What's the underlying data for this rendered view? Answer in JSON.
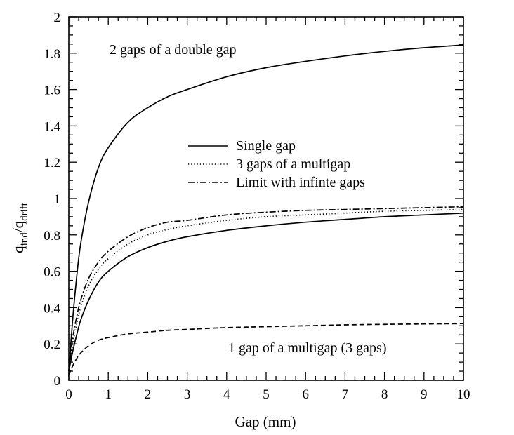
{
  "chart_data": {
    "type": "line",
    "title": "",
    "xlabel": "Gap (mm)",
    "ylabel_main": "q",
    "ylabel_sub1": "ind",
    "ylabel_mid": "/q",
    "ylabel_sub2": "drift",
    "xlim": [
      0,
      10
    ],
    "ylim": [
      0,
      2
    ],
    "xticks": [
      0,
      1,
      2,
      3,
      4,
      5,
      6,
      7,
      8,
      9,
      10
    ],
    "xtick_labels": [
      "0",
      "1",
      "2",
      "3",
      "4",
      "5",
      "6",
      "7",
      "8",
      "9",
      "10"
    ],
    "yticks": [
      0,
      0.2,
      0.4,
      0.6,
      0.8,
      1,
      1.2,
      1.4,
      1.6,
      1.8,
      2
    ],
    "ytick_labels": [
      "0",
      "0.2",
      "0.4",
      "0.6",
      "0.8",
      "1",
      "1.2",
      "1.4",
      "1.6",
      "1.8",
      "2"
    ],
    "grid": false,
    "legend_position": "center",
    "annotations": [
      {
        "text": "2 gaps of a double gap"
      },
      {
        "text": "1 gap of a multigap (3 gaps)"
      }
    ],
    "series": [
      {
        "name": "Single gap",
        "style": "solid",
        "x": [
          0,
          0.1,
          0.2,
          0.3,
          0.5,
          0.75,
          1,
          1.5,
          2,
          2.5,
          3,
          4,
          5,
          6,
          7,
          8,
          9,
          10
        ],
        "values": [
          0.05,
          0.16,
          0.25,
          0.33,
          0.44,
          0.54,
          0.6,
          0.68,
          0.73,
          0.765,
          0.79,
          0.825,
          0.85,
          0.87,
          0.885,
          0.9,
          0.91,
          0.92
        ]
      },
      {
        "name": "3 gaps of a multigap",
        "style": "dotted",
        "x": [
          0,
          0.1,
          0.2,
          0.3,
          0.5,
          0.75,
          1,
          1.5,
          2,
          2.5,
          3,
          4,
          5,
          6,
          7,
          8,
          9,
          10
        ],
        "values": [
          0.05,
          0.2,
          0.31,
          0.4,
          0.52,
          0.61,
          0.67,
          0.75,
          0.8,
          0.83,
          0.85,
          0.88,
          0.9,
          0.91,
          0.92,
          0.93,
          0.935,
          0.94
        ]
      },
      {
        "name": "Limit with infinte gaps",
        "style": "dashdot",
        "x": [
          0,
          0.1,
          0.2,
          0.3,
          0.5,
          0.75,
          1,
          1.5,
          2,
          2.5,
          3,
          4,
          5,
          6,
          7,
          8,
          9,
          10
        ],
        "values": [
          0.05,
          0.23,
          0.35,
          0.44,
          0.56,
          0.65,
          0.71,
          0.79,
          0.84,
          0.87,
          0.88,
          0.91,
          0.925,
          0.935,
          0.94,
          0.945,
          0.95,
          0.955
        ]
      },
      {
        "name": "",
        "label": "2 gaps of a double gap",
        "style": "solid",
        "x": [
          0,
          0.1,
          0.2,
          0.3,
          0.5,
          0.75,
          1,
          1.5,
          2,
          2.5,
          3,
          4,
          5,
          6,
          7,
          8,
          9,
          10
        ],
        "values": [
          0.05,
          0.34,
          0.57,
          0.75,
          0.98,
          1.17,
          1.28,
          1.42,
          1.5,
          1.56,
          1.6,
          1.67,
          1.72,
          1.755,
          1.785,
          1.81,
          1.83,
          1.845
        ]
      },
      {
        "name": "",
        "label": "1 gap of a multigap (3 gaps)",
        "style": "dashed",
        "x": [
          0,
          0.1,
          0.2,
          0.3,
          0.5,
          0.75,
          1,
          1.5,
          2,
          2.5,
          3,
          4,
          5,
          6,
          7,
          8,
          9,
          10
        ],
        "values": [
          0.03,
          0.08,
          0.12,
          0.15,
          0.19,
          0.22,
          0.235,
          0.255,
          0.265,
          0.275,
          0.28,
          0.29,
          0.295,
          0.3,
          0.305,
          0.308,
          0.31,
          0.312
        ]
      }
    ]
  }
}
